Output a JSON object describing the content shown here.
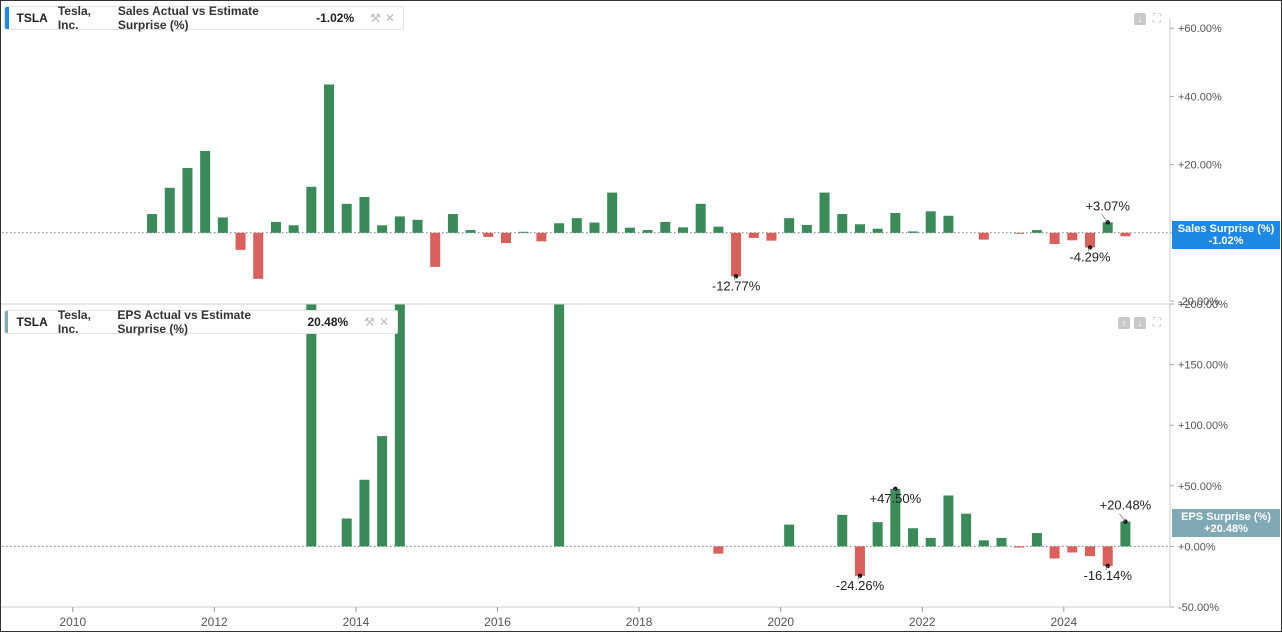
{
  "colors": {
    "positive": "#3a8a5a",
    "negative": "#d9605c",
    "sales_accent": "#1e88e5",
    "eps_accent": "#7fa9b4",
    "eps_tag": "#7fa9b4",
    "sales_tag": "#1e88e5"
  },
  "top_panel": {
    "symbol": "TSLA",
    "company": "Tesla, Inc.",
    "title": "Sales Actual vs Estimate Surprise (%)",
    "value": "-1.02%",
    "tag_label": "Sales Surprise (%)",
    "tag_value": "-1.02%",
    "icons": {
      "settings": "wrench-icon",
      "close": "close-icon",
      "download": "download-icon",
      "expand": "expand-icon"
    }
  },
  "bottom_panel": {
    "symbol": "TSLA",
    "company": "Tesla, Inc.",
    "title": "EPS Actual vs Estimate Surprise (%)",
    "value": "20.48%",
    "tag_label": "EPS Surprise (%)",
    "tag_value": "+20.48%",
    "icons": {
      "settings": "wrench-icon",
      "close": "close-icon",
      "up": "move-up-icon",
      "download": "download-icon",
      "expand": "expand-icon"
    }
  },
  "x_ticks": [
    "2010",
    "2012",
    "2014",
    "2016",
    "2018",
    "2020",
    "2022",
    "2024"
  ],
  "chart_data": [
    {
      "type": "bar",
      "title": "Sales Actual vs Estimate Surprise (%)",
      "xlim": [
        2009.0,
        2025.5
      ],
      "ylim": [
        -20,
        63
      ],
      "yticks": [
        -20,
        0,
        20,
        40,
        60
      ],
      "ytick_labels": [
        "-20.00%",
        "",
        "+20.00%",
        "+40.00%",
        "+60.00%"
      ],
      "grid": false,
      "series": [
        {
          "x": [
            2011.12,
            2011.37,
            2011.62,
            2011.87,
            2012.12,
            2012.37,
            2012.62,
            2012.87,
            2013.12,
            2013.37,
            2013.62,
            2013.87,
            2014.12,
            2014.37,
            2014.62,
            2014.87,
            2015.12,
            2015.37,
            2015.62,
            2015.87,
            2016.12,
            2016.37,
            2016.62,
            2016.87,
            2017.12,
            2017.37,
            2017.62,
            2017.87,
            2018.12,
            2018.37,
            2018.62,
            2018.87,
            2019.12,
            2019.37,
            2019.62,
            2019.87,
            2020.12,
            2020.37,
            2020.62,
            2020.87,
            2021.12,
            2021.37,
            2021.62,
            2021.87,
            2022.12,
            2022.37,
            2022.62,
            2022.87,
            2023.12,
            2023.37,
            2023.62,
            2023.87,
            2024.12,
            2024.37,
            2024.62,
            2024.87
          ],
          "values": [
            5.5,
            13.2,
            19.0,
            24.0,
            4.5,
            -5.0,
            -13.5,
            3.2,
            2.2,
            13.5,
            43.5,
            8.5,
            10.5,
            2.2,
            4.8,
            3.8,
            -10.0,
            5.5,
            0.8,
            -1.2,
            -3.0,
            0.3,
            -2.5,
            2.8,
            4.3,
            3.0,
            11.8,
            1.5,
            0.8,
            3.2,
            1.6,
            8.5,
            1.8,
            -12.77,
            -1.5,
            -2.3,
            4.3,
            2.3,
            11.8,
            5.5,
            2.5,
            1.2,
            5.8,
            0.4,
            6.3,
            5.0,
            0.0,
            -2.0,
            0.0,
            -0.3,
            0.8,
            -3.3,
            -2.2,
            -4.29,
            3.07,
            -1.02
          ]
        }
      ],
      "annotations": [
        {
          "label": "+3.07%",
          "x": 2024.62,
          "y": 3.07,
          "pos": "above"
        },
        {
          "label": "-4.29%",
          "x": 2024.37,
          "y": -4.29,
          "pos": "below"
        },
        {
          "label": "-12.77%",
          "x": 2019.37,
          "y": -12.77,
          "pos": "below"
        }
      ]
    },
    {
      "type": "bar",
      "title": "EPS Actual vs Estimate Surprise (%)",
      "xlim": [
        2009.0,
        2025.5
      ],
      "ylim": [
        -50,
        200
      ],
      "yticks": [
        -50,
        0,
        50,
        100,
        150,
        200
      ],
      "ytick_labels": [
        "-50.00%",
        "+0.00%",
        "+50.00%",
        "+100.00%",
        "+150.00%",
        "+200.00%"
      ],
      "grid": false,
      "series": [
        {
          "x": [
            2013.37,
            2013.87,
            2014.12,
            2014.37,
            2014.62,
            2016.87,
            2019.12,
            2020.12,
            2020.87,
            2021.12,
            2021.37,
            2021.62,
            2021.87,
            2022.12,
            2022.37,
            2022.62,
            2022.87,
            2023.12,
            2023.37,
            2023.62,
            2023.87,
            2024.12,
            2024.37,
            2024.62,
            2024.87
          ],
          "values": [
            200,
            23,
            55,
            91,
            200,
            200,
            -6,
            18,
            26,
            -24.26,
            20,
            47.5,
            15,
            7,
            42,
            27,
            5,
            7,
            -1,
            11,
            -10,
            -5,
            -8,
            -16.14,
            20.48
          ]
        }
      ],
      "annotations": [
        {
          "label": "+47.50%",
          "x": 2021.62,
          "y": 47.5,
          "pos": "below"
        },
        {
          "label": "-24.26%",
          "x": 2021.12,
          "y": -24.26,
          "pos": "below"
        },
        {
          "label": "+20.48%",
          "x": 2024.87,
          "y": 20.48,
          "pos": "above"
        },
        {
          "label": "-16.14%",
          "x": 2024.62,
          "y": -16.14,
          "pos": "below"
        }
      ]
    }
  ]
}
